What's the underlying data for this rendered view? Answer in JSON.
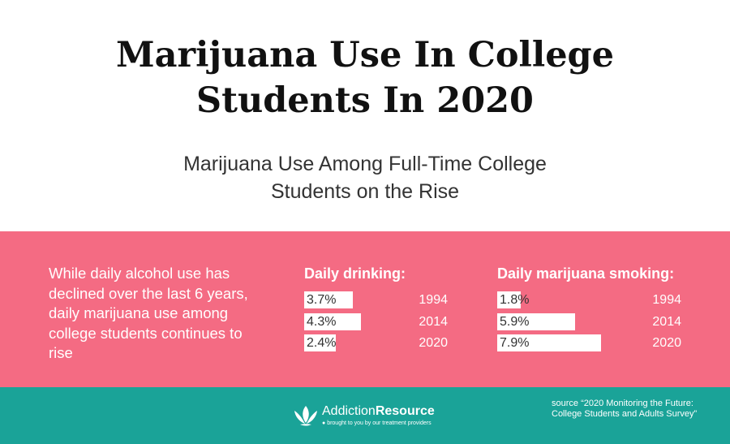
{
  "header": {
    "title_line1": "Marijuana Use In College",
    "title_line2": "Students In 2020",
    "subtitle_line1": "Marijuana Use Among Full-Time College",
    "subtitle_line2": "Students on the Rise"
  },
  "intro_text": "While daily alcohol use has declined over the last 6 years, daily marijuana use among college students continues to rise",
  "chart_data": [
    {
      "type": "bar",
      "title": "Daily drinking:",
      "categories": [
        "1994",
        "2014",
        "2020"
      ],
      "values": [
        3.7,
        4.3,
        2.4
      ],
      "value_labels": [
        "3.7%",
        "4.3%",
        "2.4%"
      ],
      "ylim": [
        0,
        8
      ]
    },
    {
      "type": "bar",
      "title": "Daily marijuana smoking:",
      "categories": [
        "1994",
        "2014",
        "2020"
      ],
      "values": [
        1.8,
        5.9,
        7.9
      ],
      "value_labels": [
        "1.8%",
        "5.9%",
        "7.9%"
      ],
      "ylim": [
        0,
        8
      ]
    }
  ],
  "footer": {
    "logo_name_regular": "Addiction",
    "logo_name_bold": "Resource",
    "logo_tagline": "brought to you by our treatment providers",
    "source": "source “2020 Monitoring the Future: College Students and Adults Survey”",
    "logo_icon": "lotus-icon"
  },
  "colors": {
    "band": "#f46b83",
    "footer": "#1aa398",
    "bar": "#ffffff"
  }
}
